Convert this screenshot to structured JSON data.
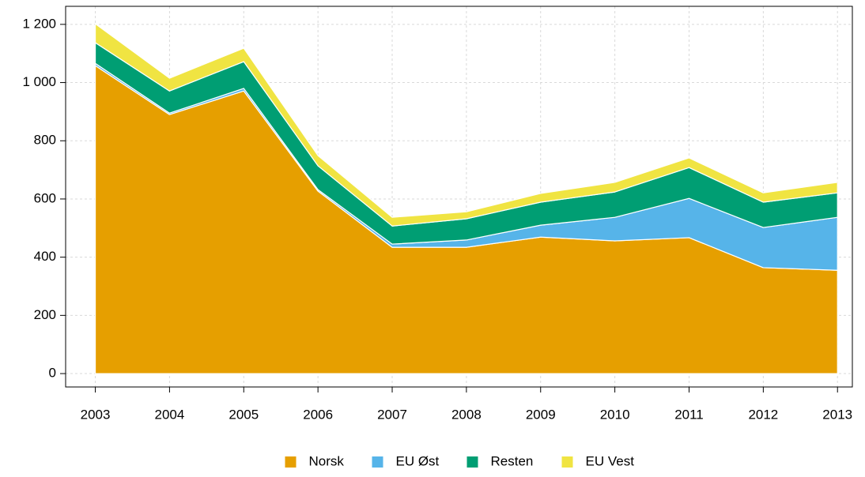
{
  "chart_data": {
    "type": "stacked_area",
    "x": [
      2003,
      2004,
      2005,
      2006,
      2007,
      2008,
      2009,
      2010,
      2011,
      2012,
      2013
    ],
    "series": [
      {
        "name": "Norsk",
        "color": "#E69F00",
        "values": [
          1058,
          890,
          971,
          627,
          434,
          434,
          469,
          456,
          467,
          364,
          355
        ]
      },
      {
        "name": "EU Øst",
        "color": "#56B4E9",
        "values": [
          8,
          5,
          9,
          5,
          11,
          25,
          41,
          81,
          135,
          138,
          182
        ]
      },
      {
        "name": "Resten",
        "color": "#009E73",
        "values": [
          71,
          76,
          92,
          82,
          62,
          73,
          79,
          87,
          106,
          87,
          84
        ]
      },
      {
        "name": "EU Vest",
        "color": "#F0E442",
        "values": [
          65,
          44,
          46,
          35,
          30,
          24,
          30,
          33,
          33,
          32,
          36
        ]
      }
    ],
    "xlim": [
      2002.6,
      2013.2
    ],
    "xticks": [
      2003,
      2004,
      2005,
      2006,
      2007,
      2008,
      2009,
      2010,
      2011,
      2012,
      2013
    ],
    "ylim": [
      -46,
      1262
    ],
    "yticks": [
      0,
      200,
      400,
      600,
      800,
      {
        "value": 1000,
        "label": "1 000"
      },
      {
        "value": 1200,
        "label": "1 200"
      }
    ],
    "grid": true,
    "legend": "bottom"
  }
}
